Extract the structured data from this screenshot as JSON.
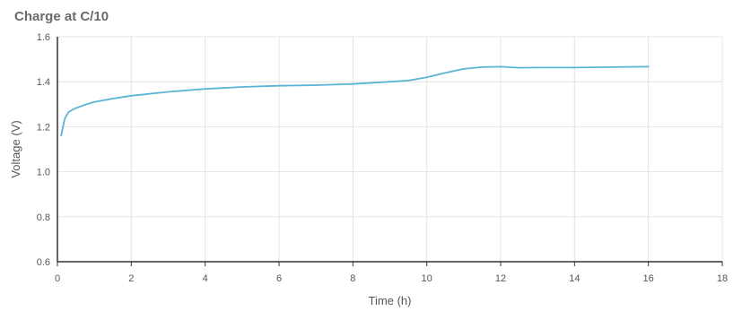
{
  "chart_data": {
    "type": "line",
    "title": "Charge at C/10",
    "xlabel": "Time (h)",
    "ylabel": "Voltage (V)",
    "xlim": [
      0,
      18
    ],
    "ylim": [
      0.6,
      1.6
    ],
    "xticks": [
      0,
      2,
      4,
      6,
      8,
      10,
      12,
      14,
      16,
      18
    ],
    "yticks": [
      0.6,
      0.8,
      1.0,
      1.2,
      1.4,
      1.6
    ],
    "xtick_labels": [
      "0",
      "2",
      "4",
      "6",
      "8",
      "10",
      "12",
      "14",
      "16",
      "18"
    ],
    "ytick_labels": [
      "0.6",
      "0.8",
      "1.0",
      "1.2",
      "1.4",
      "1.6"
    ],
    "grid": true,
    "series": [
      {
        "color": "#5ab4d6",
        "x": [
          0.1,
          0.15,
          0.2,
          0.25,
          0.3,
          0.4,
          0.5,
          0.75,
          1.0,
          1.5,
          2,
          3,
          4,
          5,
          6,
          7,
          8,
          9,
          9.5,
          10,
          10.5,
          11,
          11.5,
          12,
          12.5,
          13,
          14,
          15,
          16
        ],
        "y": [
          1.16,
          1.2,
          1.235,
          1.25,
          1.265,
          1.275,
          1.283,
          1.298,
          1.31,
          1.325,
          1.338,
          1.355,
          1.368,
          1.377,
          1.382,
          1.385,
          1.39,
          1.4,
          1.405,
          1.42,
          1.44,
          1.457,
          1.465,
          1.467,
          1.462,
          1.463,
          1.463,
          1.465,
          1.467
        ]
      }
    ]
  }
}
